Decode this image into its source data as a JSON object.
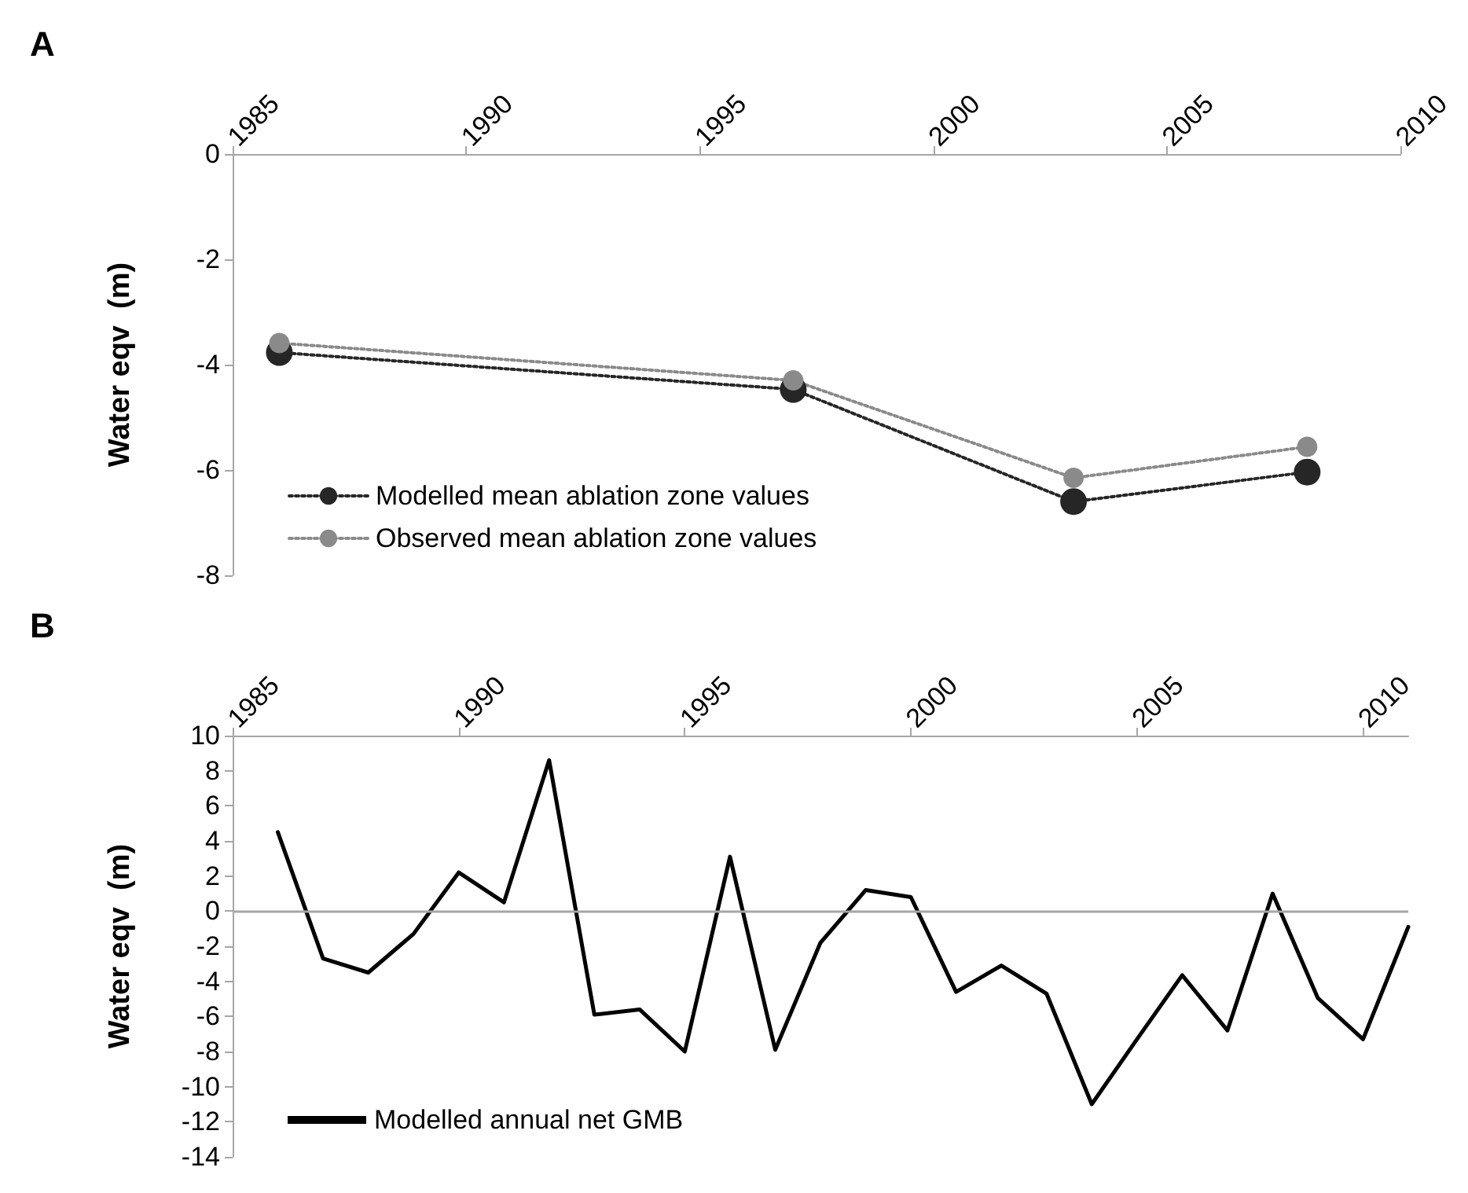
{
  "chart_data": [
    {
      "type": "line",
      "title": "A",
      "ylabel": "Water eqv  (m)",
      "xlim": [
        1985,
        2010
      ],
      "xticks": [
        1985,
        1990,
        1995,
        2000,
        2005,
        2010
      ],
      "ylim": [
        -8,
        0
      ],
      "yticks": [
        -8,
        -6,
        -4,
        -2,
        0
      ],
      "x": [
        1986,
        1997,
        2003,
        2008
      ],
      "marker": "circle",
      "line_style": "dotted",
      "legend": "bottom left",
      "grid": false,
      "series": [
        {
          "name": "Modelled mean ablation zone values",
          "color": "#262626",
          "values": [
            -3.77,
            -4.47,
            -6.6,
            -6.04
          ]
        },
        {
          "name": "Observed mean ablation zone values",
          "color": "#8a8a8a",
          "values": [
            -3.59,
            -4.3,
            -6.15,
            -5.56
          ]
        }
      ]
    },
    {
      "type": "line",
      "title": "B",
      "ylabel": "Water eqv  (m)",
      "xlim": [
        1985,
        2011
      ],
      "xticks": [
        1985,
        1990,
        1995,
        2000,
        2005,
        2010
      ],
      "ylim": [
        -14,
        10
      ],
      "yticks": [
        -14,
        -12,
        -10,
        -8,
        -6,
        -4,
        -2,
        0,
        2,
        4,
        6,
        8,
        10
      ],
      "x": [
        1986,
        1987,
        1988,
        1989,
        1990,
        1991,
        1992,
        1993,
        1994,
        1995,
        1996,
        1997,
        1998,
        1999,
        2000,
        2001,
        2002,
        2003,
        2004,
        2005,
        2006,
        2007,
        2008,
        2009,
        2010,
        2011
      ],
      "marker": "none",
      "line_style": "solid",
      "legend": "bottom left",
      "grid": false,
      "ref_lines": [
        {
          "axis": "y",
          "value": 0,
          "color": "#a6a6a6"
        }
      ],
      "series": [
        {
          "name": "Modelled annual net GMB",
          "color": "#000000",
          "values": [
            4.5,
            -2.7,
            -3.5,
            -1.3,
            2.2,
            0.5,
            8.6,
            -5.9,
            -5.6,
            -8.0,
            3.1,
            -7.9,
            -1.8,
            1.2,
            0.8,
            -4.6,
            -3.1,
            -4.7,
            -11.0,
            -7.3,
            -3.65,
            -6.8,
            1.0,
            -4.95,
            -7.3,
            -0.9
          ]
        }
      ]
    }
  ]
}
